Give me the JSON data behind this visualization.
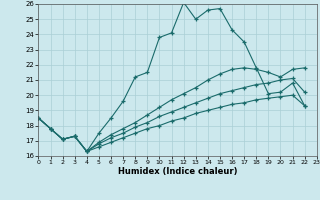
{
  "xlabel": "Humidex (Indice chaleur)",
  "xlim": [
    0,
    23
  ],
  "ylim": [
    16,
    26
  ],
  "yticks": [
    16,
    17,
    18,
    19,
    20,
    21,
    22,
    23,
    24,
    25,
    26
  ],
  "xticks": [
    0,
    1,
    2,
    3,
    4,
    5,
    6,
    7,
    8,
    9,
    10,
    11,
    12,
    13,
    14,
    15,
    16,
    17,
    18,
    19,
    20,
    21,
    22,
    23
  ],
  "bg_color": "#cce8ed",
  "grid_color": "#aacfd6",
  "line_color": "#1a6b6b",
  "line1_x": [
    0,
    1,
    2,
    3,
    4,
    5,
    6,
    7,
    8,
    9,
    10,
    11,
    12,
    13,
    14,
    15,
    16,
    17,
    18,
    19,
    20,
    21,
    22
  ],
  "line1_y": [
    18.5,
    17.8,
    17.1,
    17.3,
    16.3,
    17.5,
    18.5,
    19.6,
    21.2,
    21.5,
    23.8,
    24.1,
    26.1,
    25.0,
    25.6,
    25.7,
    24.3,
    23.5,
    21.8,
    20.1,
    20.2,
    20.8,
    19.3
  ],
  "line2_x": [
    0,
    1,
    2,
    3,
    4,
    5,
    6,
    7,
    8,
    9,
    10,
    11,
    12,
    13,
    14,
    15,
    16,
    17,
    18,
    19,
    20,
    21,
    22
  ],
  "line2_y": [
    18.5,
    17.8,
    17.1,
    17.3,
    16.3,
    16.9,
    17.4,
    17.8,
    18.2,
    18.7,
    19.2,
    19.7,
    20.1,
    20.5,
    21.0,
    21.4,
    21.7,
    21.8,
    21.7,
    21.5,
    21.2,
    21.7,
    21.8
  ],
  "line3_x": [
    0,
    1,
    2,
    3,
    4,
    5,
    6,
    7,
    8,
    9,
    10,
    11,
    12,
    13,
    14,
    15,
    16,
    17,
    18,
    19,
    20,
    21,
    22
  ],
  "line3_y": [
    18.5,
    17.8,
    17.1,
    17.3,
    16.3,
    16.8,
    17.2,
    17.5,
    17.9,
    18.2,
    18.6,
    18.9,
    19.2,
    19.5,
    19.8,
    20.1,
    20.3,
    20.5,
    20.7,
    20.8,
    21.0,
    21.1,
    20.2
  ],
  "line4_x": [
    0,
    1,
    2,
    3,
    4,
    5,
    6,
    7,
    8,
    9,
    10,
    11,
    12,
    13,
    14,
    15,
    16,
    17,
    18,
    19,
    20,
    21,
    22
  ],
  "line4_y": [
    18.5,
    17.8,
    17.1,
    17.3,
    16.3,
    16.6,
    16.9,
    17.2,
    17.5,
    17.8,
    18.0,
    18.3,
    18.5,
    18.8,
    19.0,
    19.2,
    19.4,
    19.5,
    19.7,
    19.8,
    19.9,
    20.0,
    19.3
  ]
}
